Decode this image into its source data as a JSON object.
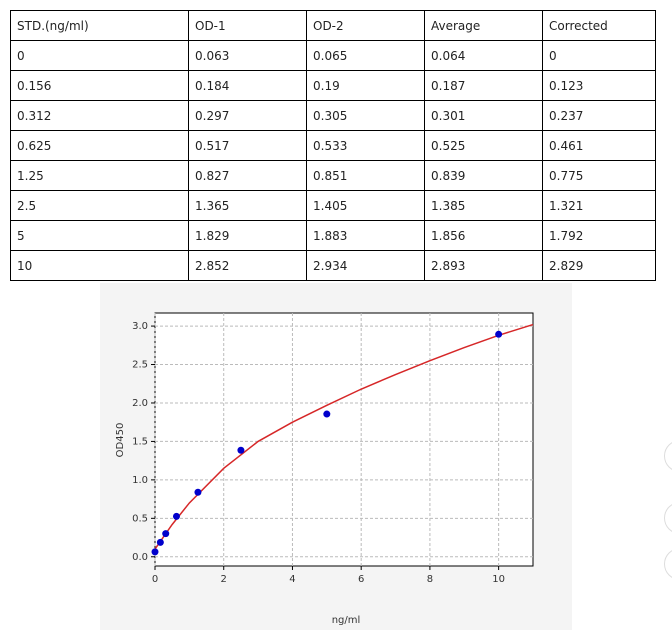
{
  "table": {
    "header": [
      "STD.(ng/ml)",
      "OD-1",
      "OD-2",
      "Average",
      "Corrected"
    ],
    "rows": [
      [
        0,
        0.063,
        0.065,
        0.064,
        0
      ],
      [
        0.156,
        0.184,
        0.19,
        0.187,
        0.123
      ],
      [
        0.312,
        0.297,
        0.305,
        0.301,
        0.237
      ],
      [
        0.625,
        0.517,
        0.533,
        0.525,
        0.461
      ],
      [
        1.25,
        0.827,
        0.851,
        0.839,
        0.775
      ],
      [
        2.5,
        1.365,
        1.405,
        1.385,
        1.321
      ],
      [
        5,
        1.829,
        1.883,
        1.856,
        1.792
      ],
      [
        10,
        2.852,
        2.934,
        2.893,
        2.829
      ]
    ]
  },
  "chart_data": {
    "type": "scatter",
    "xlabel": "ng/ml",
    "ylabel": "OD450",
    "series": [
      {
        "name": "Average",
        "kind": "points",
        "color": "#0000cc",
        "x": [
          0,
          0.156,
          0.312,
          0.625,
          1.25,
          2.5,
          5,
          10
        ],
        "values": [
          0.064,
          0.187,
          0.301,
          0.525,
          0.839,
          1.385,
          1.856,
          2.893
        ]
      },
      {
        "name": "Fit",
        "kind": "line",
        "color": "#d62728",
        "x": [
          0,
          0.5,
          1,
          2,
          3,
          4,
          5,
          6,
          7,
          8,
          9,
          10,
          11
        ],
        "values": [
          0.1,
          0.42,
          0.7,
          1.15,
          1.5,
          1.75,
          1.97,
          2.18,
          2.37,
          2.55,
          2.72,
          2.88,
          3.02
        ]
      }
    ],
    "xlim": [
      0,
      11
    ],
    "ylim": [
      -0.12,
      3.17
    ],
    "xticks": [
      0,
      2,
      4,
      6,
      8,
      10
    ],
    "yticks": [
      {
        "value": 0,
        "label": "0.0"
      },
      {
        "value": 0.5,
        "label": "0.5"
      },
      {
        "value": 1,
        "label": "1.0"
      },
      {
        "value": 1.5,
        "label": "1.5"
      },
      {
        "value": 2,
        "label": "2.0"
      },
      {
        "value": 2.5,
        "label": "2.5"
      },
      {
        "value": 3,
        "label": "3.0"
      }
    ],
    "grid": true
  }
}
